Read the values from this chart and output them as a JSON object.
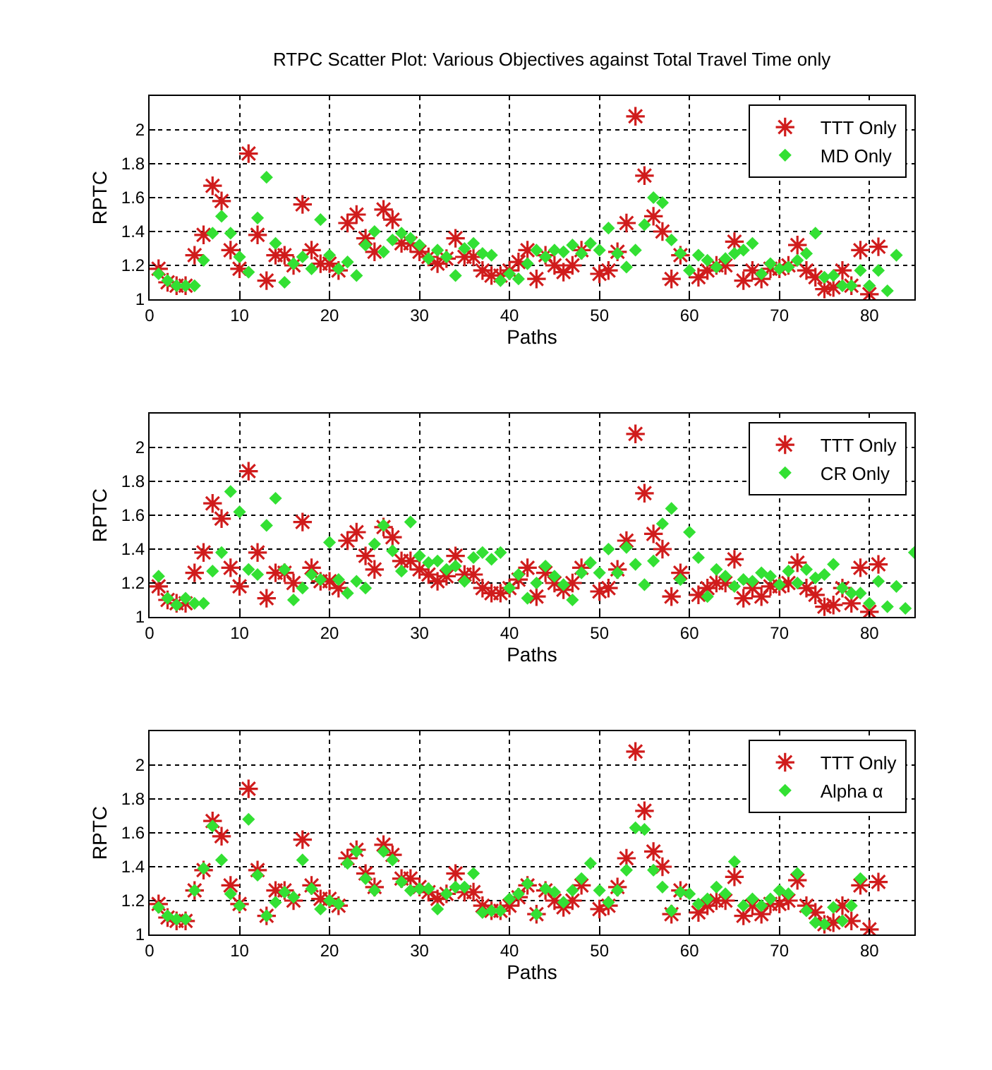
{
  "chart_data": [
    {
      "type": "scatter",
      "title": "RTPC Scatter Plot: Various Objectives against Total Travel Time only",
      "xlabel": "Paths",
      "ylabel": "RPTC",
      "xlim": [
        0,
        85
      ],
      "xticks": [
        0,
        10,
        20,
        30,
        40,
        50,
        60,
        70,
        80
      ],
      "ylim": [
        1,
        2.2
      ],
      "yticks": [
        1,
        1.2,
        1.4,
        1.6,
        1.8,
        2
      ],
      "grid": true,
      "legend": "top right",
      "series": [
        {
          "name": "TTT Only",
          "color": "#d01c1c",
          "marker": "cross",
          "x": [
            1,
            2,
            3,
            4,
            5,
            6,
            7,
            8,
            9,
            10,
            11,
            12,
            13,
            14,
            15,
            16,
            17,
            18,
            19,
            20,
            21,
            22,
            23,
            24,
            25,
            26,
            27,
            28,
            29,
            30,
            31,
            32,
            33,
            34,
            35,
            36,
            37,
            38,
            39,
            40,
            41,
            42,
            43,
            44,
            45,
            46,
            47,
            48,
            50,
            51,
            52,
            53,
            54,
            55,
            56,
            57,
            58,
            59,
            61,
            62,
            63,
            64,
            65,
            66,
            67,
            68,
            69,
            70,
            71,
            72,
            73,
            74,
            75,
            76,
            77,
            78,
            79,
            80,
            81
          ],
          "values": [
            1.18,
            1.1,
            1.08,
            1.08,
            1.26,
            1.38,
            1.67,
            1.58,
            1.29,
            1.18,
            1.86,
            1.38,
            1.11,
            1.26,
            1.26,
            1.2,
            1.56,
            1.29,
            1.21,
            1.21,
            1.17,
            1.45,
            1.5,
            1.36,
            1.28,
            1.53,
            1.47,
            1.33,
            1.33,
            1.28,
            1.25,
            1.21,
            1.24,
            1.36,
            1.25,
            1.25,
            1.17,
            1.14,
            1.14,
            1.17,
            1.22,
            1.29,
            1.12,
            1.26,
            1.2,
            1.16,
            1.2,
            1.29,
            1.15,
            1.17,
            1.28,
            1.45,
            2.08,
            1.73,
            1.49,
            1.4,
            1.12,
            1.26,
            1.13,
            1.17,
            1.2,
            1.2,
            1.34,
            1.11,
            1.17,
            1.12,
            1.18,
            1.18,
            1.2,
            1.32,
            1.17,
            1.13,
            1.06,
            1.07,
            1.17,
            1.08,
            1.29,
            1.03,
            1.31
          ]
        },
        {
          "name": "MD Only",
          "color": "#33e033",
          "marker": "diamond",
          "x": [
            1,
            2,
            3,
            4,
            5,
            6,
            7,
            8,
            9,
            10,
            11,
            12,
            13,
            14,
            15,
            16,
            17,
            18,
            19,
            20,
            21,
            22,
            23,
            24,
            25,
            26,
            27,
            28,
            29,
            30,
            31,
            32,
            33,
            34,
            35,
            36,
            37,
            38,
            39,
            40,
            41,
            42,
            43,
            44,
            45,
            46,
            47,
            48,
            49,
            50,
            51,
            52,
            53,
            54,
            55,
            56,
            57,
            58,
            59,
            60,
            61,
            62,
            63,
            64,
            65,
            66,
            67,
            68,
            69,
            70,
            71,
            72,
            73,
            74,
            75,
            76,
            77,
            78,
            79,
            80,
            81,
            82,
            83
          ],
          "values": [
            1.15,
            1.11,
            1.08,
            1.08,
            1.08,
            1.23,
            1.39,
            1.49,
            1.39,
            1.25,
            1.16,
            1.48,
            1.72,
            1.33,
            1.1,
            1.21,
            1.25,
            1.18,
            1.47,
            1.26,
            1.18,
            1.22,
            1.14,
            1.32,
            1.4,
            1.28,
            1.35,
            1.39,
            1.36,
            1.32,
            1.24,
            1.29,
            1.25,
            1.14,
            1.3,
            1.33,
            1.27,
            1.26,
            1.11,
            1.15,
            1.12,
            1.21,
            1.29,
            1.25,
            1.29,
            1.28,
            1.32,
            1.27,
            1.33,
            1.29,
            1.42,
            1.27,
            1.19,
            1.29,
            1.44,
            1.6,
            1.57,
            1.35,
            1.27,
            1.17,
            1.26,
            1.23,
            1.19,
            1.24,
            1.27,
            1.29,
            1.33,
            1.15,
            1.21,
            1.18,
            1.19,
            1.23,
            1.27,
            1.39,
            1.13,
            1.14,
            1.08,
            1.08,
            1.17,
            1.08,
            1.17,
            1.05,
            1.26
          ]
        }
      ]
    },
    {
      "type": "scatter",
      "xlabel": "Paths",
      "ylabel": "RPTC",
      "xlim": [
        0,
        85
      ],
      "xticks": [
        0,
        10,
        20,
        30,
        40,
        50,
        60,
        70,
        80
      ],
      "ylim": [
        1,
        2.2
      ],
      "yticks": [
        1,
        1.2,
        1.4,
        1.6,
        1.8,
        2
      ],
      "grid": true,
      "legend": "top right",
      "series": [
        {
          "name": "TTT Only",
          "color": "#d01c1c",
          "marker": "cross",
          "x": [
            1,
            2,
            3,
            4,
            5,
            6,
            7,
            8,
            9,
            10,
            11,
            12,
            13,
            14,
            15,
            16,
            17,
            18,
            19,
            20,
            21,
            22,
            23,
            24,
            25,
            26,
            27,
            28,
            29,
            30,
            31,
            32,
            33,
            34,
            35,
            36,
            37,
            38,
            39,
            40,
            41,
            42,
            43,
            44,
            45,
            46,
            47,
            48,
            50,
            51,
            52,
            53,
            54,
            55,
            56,
            57,
            58,
            59,
            61,
            62,
            63,
            64,
            65,
            66,
            67,
            68,
            69,
            70,
            71,
            72,
            73,
            74,
            75,
            76,
            77,
            78,
            79,
            80,
            81
          ],
          "values": [
            1.18,
            1.1,
            1.08,
            1.08,
            1.26,
            1.38,
            1.67,
            1.58,
            1.29,
            1.18,
            1.86,
            1.38,
            1.11,
            1.26,
            1.26,
            1.2,
            1.56,
            1.29,
            1.21,
            1.21,
            1.17,
            1.45,
            1.5,
            1.36,
            1.28,
            1.53,
            1.47,
            1.33,
            1.33,
            1.28,
            1.25,
            1.21,
            1.24,
            1.36,
            1.25,
            1.25,
            1.17,
            1.14,
            1.14,
            1.17,
            1.22,
            1.29,
            1.12,
            1.26,
            1.2,
            1.16,
            1.2,
            1.29,
            1.15,
            1.17,
            1.28,
            1.45,
            2.08,
            1.73,
            1.49,
            1.4,
            1.12,
            1.26,
            1.13,
            1.17,
            1.2,
            1.2,
            1.34,
            1.11,
            1.17,
            1.12,
            1.18,
            1.18,
            1.2,
            1.32,
            1.17,
            1.13,
            1.06,
            1.07,
            1.17,
            1.08,
            1.29,
            1.03,
            1.31
          ]
        },
        {
          "name": "CR Only",
          "color": "#33e033",
          "marker": "diamond",
          "x": [
            1,
            2,
            3,
            4,
            5,
            6,
            7,
            8,
            9,
            10,
            11,
            12,
            13,
            14,
            15,
            16,
            17,
            18,
            19,
            20,
            21,
            22,
            23,
            24,
            25,
            26,
            27,
            28,
            29,
            30,
            31,
            32,
            33,
            34,
            35,
            36,
            37,
            38,
            39,
            40,
            41,
            42,
            43,
            44,
            45,
            46,
            47,
            48,
            49,
            50,
            51,
            52,
            53,
            54,
            55,
            56,
            57,
            58,
            59,
            60,
            61,
            62,
            63,
            64,
            65,
            66,
            67,
            68,
            69,
            70,
            71,
            72,
            73,
            74,
            75,
            76,
            77,
            78,
            79,
            80,
            81,
            82,
            83,
            84,
            85
          ],
          "values": [
            1.24,
            1.11,
            1.07,
            1.11,
            1.08,
            1.08,
            1.27,
            1.38,
            1.74,
            1.62,
            1.28,
            1.25,
            1.54,
            1.7,
            1.28,
            1.1,
            1.17,
            1.25,
            1.22,
            1.44,
            1.22,
            1.14,
            1.21,
            1.17,
            1.43,
            1.54,
            1.39,
            1.27,
            1.56,
            1.36,
            1.32,
            1.33,
            1.28,
            1.3,
            1.21,
            1.35,
            1.38,
            1.34,
            1.38,
            1.17,
            1.25,
            1.11,
            1.2,
            1.3,
            1.24,
            1.19,
            1.1,
            1.26,
            1.32,
            1.26,
            1.4,
            1.26,
            1.41,
            1.31,
            1.19,
            1.33,
            1.55,
            1.64,
            1.22,
            1.5,
            1.35,
            1.12,
            1.28,
            1.24,
            1.18,
            1.22,
            1.21,
            1.26,
            1.24,
            1.19,
            1.27,
            1.2,
            1.28,
            1.23,
            1.25,
            1.31,
            1.17,
            1.14,
            1.14,
            1.08,
            1.21,
            1.06,
            1.18,
            1.05,
            1.38
          ]
        }
      ]
    },
    {
      "type": "scatter",
      "xlabel": "Paths",
      "ylabel": "RPTC",
      "xlim": [
        0,
        85
      ],
      "xticks": [
        0,
        10,
        20,
        30,
        40,
        50,
        60,
        70,
        80
      ],
      "ylim": [
        1,
        2.2
      ],
      "yticks": [
        1,
        1.2,
        1.4,
        1.6,
        1.8,
        2
      ],
      "grid": true,
      "legend": "top right",
      "series": [
        {
          "name": "TTT Only",
          "color": "#d01c1c",
          "marker": "cross",
          "x": [
            1,
            2,
            3,
            4,
            5,
            6,
            7,
            8,
            9,
            10,
            11,
            12,
            13,
            14,
            15,
            16,
            17,
            18,
            19,
            20,
            21,
            22,
            23,
            24,
            25,
            26,
            27,
            28,
            29,
            30,
            31,
            32,
            33,
            34,
            35,
            36,
            37,
            38,
            39,
            40,
            41,
            42,
            43,
            44,
            45,
            46,
            47,
            48,
            50,
            51,
            52,
            53,
            54,
            55,
            56,
            57,
            58,
            59,
            61,
            62,
            63,
            64,
            65,
            66,
            67,
            68,
            69,
            70,
            71,
            72,
            73,
            74,
            75,
            76,
            77,
            78,
            79,
            80,
            81
          ],
          "values": [
            1.18,
            1.1,
            1.08,
            1.08,
            1.26,
            1.38,
            1.67,
            1.58,
            1.29,
            1.18,
            1.86,
            1.38,
            1.11,
            1.26,
            1.26,
            1.2,
            1.56,
            1.29,
            1.21,
            1.21,
            1.17,
            1.45,
            1.5,
            1.36,
            1.28,
            1.53,
            1.47,
            1.33,
            1.33,
            1.28,
            1.25,
            1.21,
            1.24,
            1.36,
            1.25,
            1.25,
            1.17,
            1.14,
            1.14,
            1.17,
            1.22,
            1.29,
            1.12,
            1.26,
            1.2,
            1.16,
            1.2,
            1.29,
            1.15,
            1.17,
            1.28,
            1.45,
            2.08,
            1.73,
            1.49,
            1.4,
            1.12,
            1.26,
            1.13,
            1.17,
            1.2,
            1.2,
            1.34,
            1.11,
            1.17,
            1.12,
            1.18,
            1.18,
            1.2,
            1.32,
            1.17,
            1.13,
            1.06,
            1.07,
            1.17,
            1.08,
            1.29,
            1.03,
            1.31
          ]
        },
        {
          "name": "Alpha α",
          "color": "#33e033",
          "marker": "diamond",
          "x": [
            1,
            2,
            3,
            4,
            5,
            6,
            7,
            8,
            9,
            10,
            11,
            12,
            13,
            14,
            15,
            16,
            17,
            18,
            19,
            20,
            21,
            22,
            23,
            24,
            25,
            26,
            27,
            28,
            29,
            30,
            31,
            32,
            33,
            34,
            35,
            36,
            37,
            38,
            39,
            40,
            41,
            42,
            43,
            44,
            45,
            46,
            47,
            48,
            49,
            50,
            51,
            52,
            53,
            54,
            55,
            56,
            57,
            58,
            59,
            60,
            61,
            62,
            63,
            64,
            65,
            66,
            67,
            68,
            69,
            70,
            71,
            72,
            73,
            74,
            75,
            76,
            77,
            78,
            79
          ],
          "values": [
            1.16,
            1.11,
            1.09,
            1.09,
            1.26,
            1.39,
            1.64,
            1.44,
            1.24,
            1.17,
            1.68,
            1.35,
            1.11,
            1.19,
            1.25,
            1.22,
            1.44,
            1.27,
            1.15,
            1.2,
            1.18,
            1.42,
            1.49,
            1.33,
            1.26,
            1.49,
            1.44,
            1.31,
            1.26,
            1.27,
            1.27,
            1.15,
            1.24,
            1.28,
            1.28,
            1.36,
            1.13,
            1.14,
            1.14,
            1.21,
            1.24,
            1.3,
            1.12,
            1.27,
            1.25,
            1.19,
            1.26,
            1.33,
            1.42,
            1.26,
            1.19,
            1.26,
            1.38,
            1.63,
            1.62,
            1.38,
            1.28,
            1.14,
            1.25,
            1.24,
            1.18,
            1.21,
            1.28,
            1.24,
            1.43,
            1.17,
            1.21,
            1.17,
            1.21,
            1.26,
            1.24,
            1.36,
            1.14,
            1.07,
            1.06,
            1.16,
            1.08,
            1.17,
            1.33
          ]
        }
      ]
    }
  ]
}
